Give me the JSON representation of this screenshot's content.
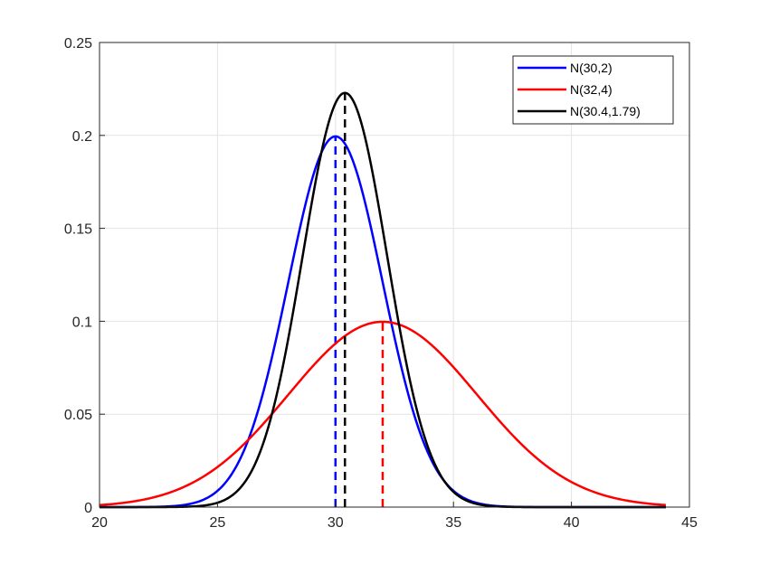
{
  "chart_data": {
    "type": "line",
    "title": "",
    "xlabel": "",
    "ylabel": "",
    "xlim": [
      20,
      45
    ],
    "ylim": [
      0,
      0.25
    ],
    "grid": true,
    "legend_placement": "top-right",
    "x_ticks": [
      "20",
      "25",
      "30",
      "35",
      "40",
      "45"
    ],
    "y_ticks": [
      "0",
      "0.05",
      "0.1",
      "0.15",
      "0.2",
      "0.25"
    ],
    "x_range_plotted": [
      20,
      44
    ],
    "series": [
      {
        "name": "N(30,2)",
        "mean": 30,
        "sd": 2,
        "color": "#0000ff",
        "mean_marker": "dashed vertical line at mean"
      },
      {
        "name": "N(32,4)",
        "mean": 32,
        "sd": 4,
        "color": "#ff0000",
        "mean_marker": "dashed vertical line at mean"
      },
      {
        "name": "N(30.4,1.79)",
        "mean": 30.4,
        "sd": 1.79,
        "color": "#000000",
        "mean_marker": "dashed vertical line at mean"
      }
    ]
  }
}
